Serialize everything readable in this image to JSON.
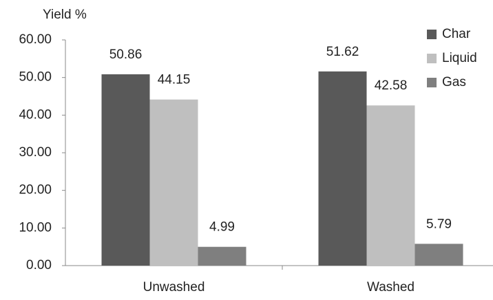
{
  "chart_data": {
    "type": "bar",
    "y_axis_label": "Yield %",
    "categories": [
      "Unwashed",
      "Washed"
    ],
    "series": [
      {
        "name": "Char",
        "color": "#595959",
        "values": [
          50.86,
          51.62
        ]
      },
      {
        "name": "Liquid",
        "color": "#bfbfbf",
        "values": [
          44.15,
          42.58
        ]
      },
      {
        "name": "Gas",
        "color": "#7f7f7f",
        "values": [
          4.99,
          5.79
        ]
      }
    ],
    "ylim": [
      0,
      60
    ],
    "yticks": [
      {
        "value": 0,
        "label": "0.00"
      },
      {
        "value": 10,
        "label": "10.00"
      },
      {
        "value": 20,
        "label": "20.00"
      },
      {
        "value": 30,
        "label": "30.00"
      },
      {
        "value": 40,
        "label": "40.00"
      },
      {
        "value": 50,
        "label": "50.00"
      },
      {
        "value": 60,
        "label": "60.00"
      }
    ],
    "grid": false,
    "legend": "top-right"
  }
}
